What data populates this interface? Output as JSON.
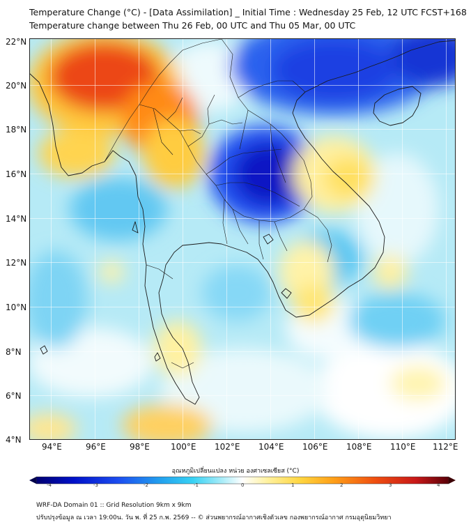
{
  "header": {
    "title_line1": "Temperature Change (°C) - [Data Assimilation] _ Initial Time : Wednesday 25 Feb, 12 UTC FCST+168",
    "title_line2": "Temperature change between Thu 26 Feb, 00 UTC and Thu 05 Mar, 00 UTC"
  },
  "map": {
    "lat_labels": [
      "22°N",
      "20°N",
      "18°N",
      "16°N",
      "14°N",
      "12°N",
      "10°N",
      "8°N",
      "6°N",
      "4°N"
    ],
    "lon_labels": [
      "94°E",
      "96°E",
      "98°E",
      "100°E",
      "102°E",
      "104°E",
      "106°E",
      "108°E",
      "110°E",
      "112°E"
    ]
  },
  "colorbar": {
    "label": "อุณหภูมิเปลี่ยนแปลง หน่วย องศาเซลเซียส (°C)",
    "ticks": [
      "-4",
      "-3",
      "-2",
      "-1",
      "0",
      "1",
      "2",
      "3",
      "4"
    ],
    "colors": [
      "#000070",
      "#0010c8",
      "#1c4ef0",
      "#22a0ee",
      "#38d2f4",
      "#a8ecf8",
      "#ffffff",
      "#fff2a0",
      "#ffd640",
      "#ffa018",
      "#f05010",
      "#c81818",
      "#5a0008"
    ]
  },
  "footer": {
    "line1": "WRF-DA Domain 01 :: Grid Resolution 9km x 9km",
    "line2": "ปรับปรุงข้อมูล ณ เวลา 19:00น. วัน พ. ที่ 25 ก.พ. 2569 -- © ส่วนพยากรณ์อากาศเชิงตัวเลข กองพยากรณ์อากาศ กรมอุตุนิยมวิทยา"
  }
}
